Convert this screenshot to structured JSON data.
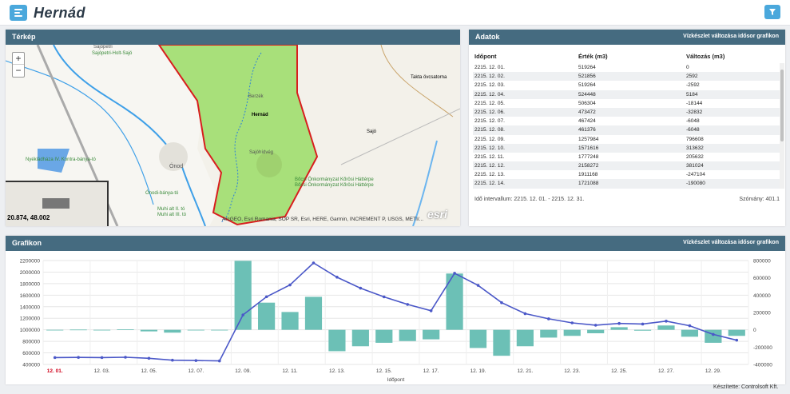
{
  "header": {
    "title": "Hernád"
  },
  "map_panel": {
    "title": "Térkép",
    "zoom_in": "+",
    "zoom_out": "−",
    "coords": "20.874, 48.002",
    "attribution": "ArcGEO, Esri Romania, SOP SR, Esri, HERE, Garmin, INCREMENT P, USGS, METI/...",
    "logo": "esri",
    "labels": [
      "Sajópetri",
      "Sajópetri-Holt-Sajó",
      "Berzék",
      "Hernád",
      "Sajóhídvég",
      "Ónod",
      "Ónodi-bánya-tó",
      "Nyékládháza IV. Kontra-bánya-tó",
      "Bőcsi Önkormányzat Kőrösi Háttérpe",
      "Bőcsi Önkormányzat Kőrösi Háttérpe",
      "Takta övcsatorna",
      "Sajó",
      "Muhi alt II. tó",
      "Muhi alt III. tó"
    ]
  },
  "data_panel": {
    "title": "Adatok",
    "subtitle": "Vízkészlet változása idősor grafikon",
    "columns": [
      "Időpont",
      "Érték (m3)",
      "Változás (m3)"
    ],
    "rows": [
      [
        "2215. 12. 01.",
        "519264",
        "0"
      ],
      [
        "2215. 12. 02.",
        "521856",
        "2592"
      ],
      [
        "2215. 12. 03.",
        "519264",
        "-2592"
      ],
      [
        "2215. 12. 04.",
        "524448",
        "5184"
      ],
      [
        "2215. 12. 05.",
        "506304",
        "-18144"
      ],
      [
        "2215. 12. 06.",
        "473472",
        "-32832"
      ],
      [
        "2215. 12. 07.",
        "467424",
        "-6048"
      ],
      [
        "2215. 12. 08.",
        "461376",
        "-6048"
      ],
      [
        "2215. 12. 09.",
        "1257984",
        "796608"
      ],
      [
        "2215. 12. 10.",
        "1571616",
        "313632"
      ],
      [
        "2215. 12. 11.",
        "1777248",
        "205632"
      ],
      [
        "2215. 12. 12.",
        "2158272",
        "381024"
      ],
      [
        "2215. 12. 13.",
        "1911168",
        "-247104"
      ],
      [
        "2215. 12. 14.",
        "1721088",
        "-190080"
      ]
    ],
    "interval": "Idő intervallum: 2215. 12. 01. - 2215. 12. 31.",
    "deviation": "Szórvány: 401.1"
  },
  "chart_panel": {
    "title": "Grafikon",
    "subtitle": "Vízkészlet változása idősor grafikon"
  },
  "chart_data": {
    "type": "bar",
    "x": [
      "12. 01.",
      "12. 02.",
      "12. 03.",
      "12. 04.",
      "12. 05.",
      "12. 06.",
      "12. 07.",
      "12. 08.",
      "12. 09.",
      "12. 10.",
      "12. 11.",
      "12. 12.",
      "12. 13.",
      "12. 14.",
      "12. 15.",
      "12. 16.",
      "12. 17.",
      "12. 18.",
      "12. 19.",
      "12. 20.",
      "12. 21.",
      "12. 22.",
      "12. 23.",
      "12. 24.",
      "12. 25.",
      "12. 26.",
      "12. 27.",
      "12. 28.",
      "12. 29.",
      "12. 30."
    ],
    "tick_labels": [
      "12. 01.",
      "12. 03.",
      "12. 05.",
      "12. 07.",
      "12. 09.",
      "12. 11.",
      "12. 13.",
      "12. 15.",
      "12. 17.",
      "12. 19.",
      "12. 21.",
      "12. 23.",
      "12. 25.",
      "12. 27.",
      "12. 29."
    ],
    "xlabel": "Időpont",
    "y_left": {
      "ylim": [
        400000,
        2200000
      ],
      "ticks": [
        "2200000",
        "2000000",
        "1800000",
        "1600000",
        "1400000",
        "1200000",
        "1000000",
        "800000",
        "600000",
        "400000"
      ]
    },
    "y_right": {
      "ylim": [
        -400000,
        800000
      ],
      "ticks": [
        "800000",
        "600000",
        "400000",
        "200000",
        "0",
        "-200000",
        "-400000"
      ]
    },
    "series": [
      {
        "type": "bar",
        "axis": "right",
        "color": "#6cc0b6",
        "values": [
          0,
          2592,
          -2592,
          5184,
          -18144,
          -32832,
          -6048,
          -6048,
          796608,
          313632,
          205632,
          381024,
          -247104,
          -190080,
          -150000,
          -130000,
          -110000,
          650000,
          -210000,
          -300000,
          -190000,
          -90000,
          -70000,
          -40000,
          30000,
          -10000,
          50000,
          -80000,
          -150000,
          -70000
        ]
      },
      {
        "type": "line",
        "axis": "left",
        "color": "#4b58c8",
        "values": [
          519264,
          521856,
          519264,
          524448,
          506304,
          473472,
          467424,
          461376,
          1257984,
          1571616,
          1777248,
          2158272,
          1911168,
          1721088,
          1570000,
          1440000,
          1330000,
          1980000,
          1770000,
          1470000,
          1280000,
          1190000,
          1120000,
          1080000,
          1110000,
          1100000,
          1150000,
          1070000,
          920000,
          820000
        ]
      }
    ],
    "grid": true
  },
  "footer": {
    "credit": "Készítette: Controlsoft Kft."
  }
}
